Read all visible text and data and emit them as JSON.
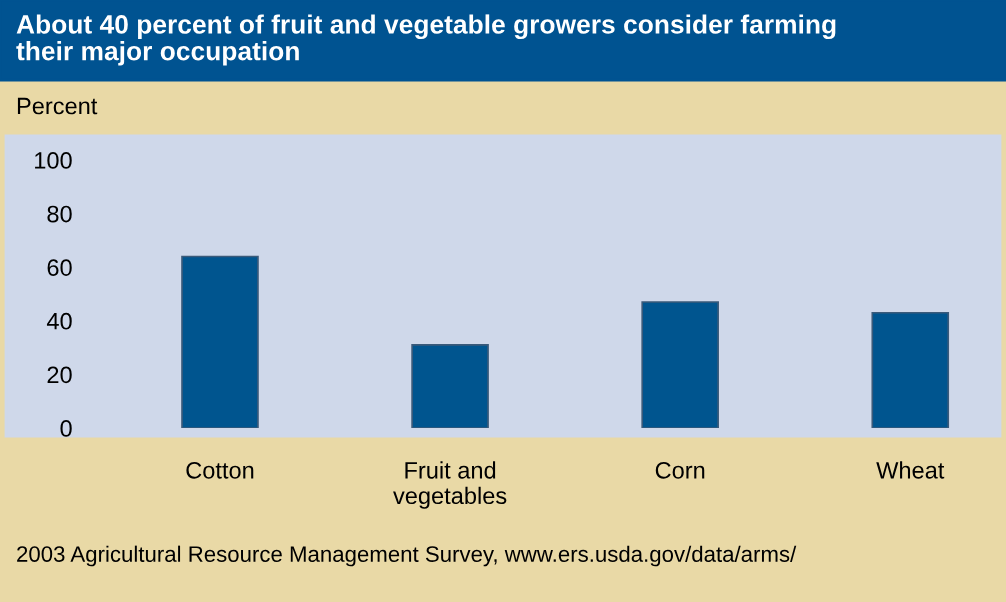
{
  "chart_data": {
    "type": "bar",
    "title": "About 40 percent of fruit and vegetable growers consider farming\ntheir major occupation",
    "ylabel": "Percent",
    "categories": [
      "Cotton",
      "Fruit and\nvegetables",
      "Corn",
      "Wheat"
    ],
    "values": [
      64,
      31,
      47,
      43
    ],
    "color": "#00558f",
    "ylim": [
      0,
      100
    ],
    "yticks": [
      0,
      20,
      40,
      60,
      80,
      100
    ],
    "grid": false,
    "annotations": [
      "2003 Agricultural Resource Management Survey, www.ers.usda.gov/data/arms/"
    ]
  }
}
